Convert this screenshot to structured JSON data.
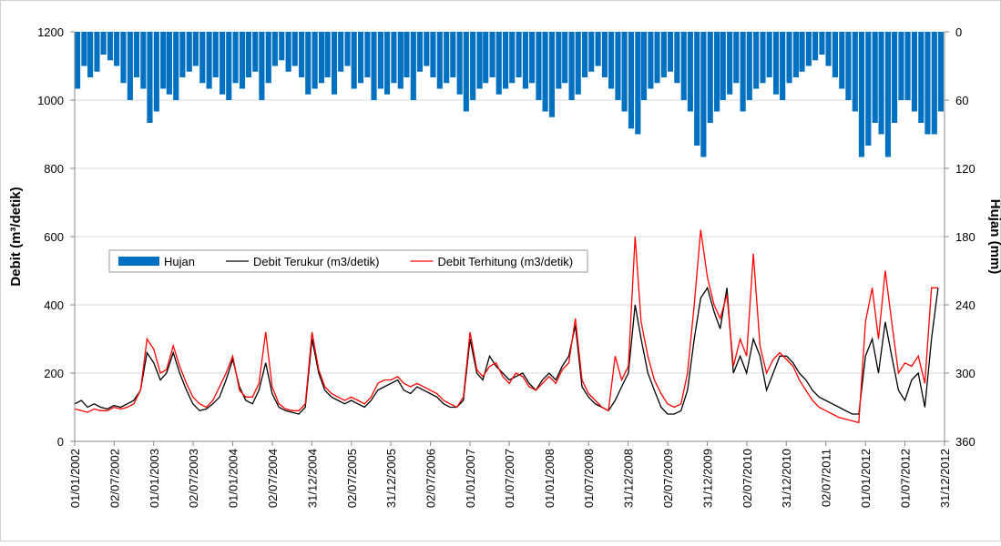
{
  "chart_data": {
    "type": "line",
    "ylabel": "Debit (m³/detik)",
    "y2label": "Hujan (mm)",
    "ylim": [
      0,
      1200
    ],
    "yticks": [
      0,
      200,
      400,
      600,
      800,
      1000,
      1200
    ],
    "y2lim": [
      360,
      0
    ],
    "y2ticks": [
      0,
      60,
      120,
      180,
      240,
      300,
      360
    ],
    "grid": true,
    "legend": "center-left",
    "xlim": [
      "2002-01-01",
      "2012-12-31"
    ],
    "xticks": [
      {
        "value": "2002-01-01",
        "label": "01/01/2002"
      },
      {
        "value": "2002-07-02",
        "label": "02/07/2002"
      },
      {
        "value": "2003-01-01",
        "label": "01/01/2003"
      },
      {
        "value": "2003-07-02",
        "label": "02/07/2003"
      },
      {
        "value": "2004-01-01",
        "label": "01/01/2004"
      },
      {
        "value": "2004-07-02",
        "label": "02/07/2004"
      },
      {
        "value": "2004-12-31",
        "label": "31/12/2004"
      },
      {
        "value": "2005-07-02",
        "label": "02/07/2005"
      },
      {
        "value": "2005-12-31",
        "label": "31/12/2005"
      },
      {
        "value": "2006-07-02",
        "label": "02/07/2006"
      },
      {
        "value": "2007-01-01",
        "label": "01/01/2007"
      },
      {
        "value": "2007-07-01",
        "label": "01/07/2007"
      },
      {
        "value": "2008-01-01",
        "label": "01/01/2008"
      },
      {
        "value": "2008-07-01",
        "label": "01/07/2008"
      },
      {
        "value": "2008-12-31",
        "label": "31/12/2008"
      },
      {
        "value": "2009-07-02",
        "label": "02/07/2009"
      },
      {
        "value": "2009-12-31",
        "label": "31/12/2009"
      },
      {
        "value": "2010-07-02",
        "label": "02/07/2010"
      },
      {
        "value": "2010-12-31",
        "label": "31/12/2010"
      },
      {
        "value": "2011-07-02",
        "label": "02/07/2011"
      },
      {
        "value": "2012-01-01",
        "label": "01/01/2012"
      },
      {
        "value": "2012-07-01",
        "label": "01/07/2012"
      },
      {
        "value": "2012-12-31",
        "label": "31/12/2012"
      }
    ],
    "x": [
      "2002-01-01",
      "2002-02-01",
      "2002-03-01",
      "2002-04-01",
      "2002-05-01",
      "2002-06-01",
      "2002-07-01",
      "2002-08-01",
      "2002-09-01",
      "2002-10-01",
      "2002-11-01",
      "2002-12-01",
      "2003-01-01",
      "2003-02-01",
      "2003-03-01",
      "2003-04-01",
      "2003-05-01",
      "2003-06-01",
      "2003-07-01",
      "2003-08-01",
      "2003-09-01",
      "2003-10-01",
      "2003-11-01",
      "2003-12-01",
      "2004-01-01",
      "2004-02-01",
      "2004-03-01",
      "2004-04-01",
      "2004-05-01",
      "2004-06-01",
      "2004-07-01",
      "2004-08-01",
      "2004-09-01",
      "2004-10-01",
      "2004-11-01",
      "2004-12-01",
      "2005-01-01",
      "2005-02-01",
      "2005-03-01",
      "2005-04-01",
      "2005-05-01",
      "2005-06-01",
      "2005-07-01",
      "2005-08-01",
      "2005-09-01",
      "2005-10-01",
      "2005-11-01",
      "2005-12-01",
      "2006-01-01",
      "2006-02-01",
      "2006-03-01",
      "2006-04-01",
      "2006-05-01",
      "2006-06-01",
      "2006-07-01",
      "2006-08-01",
      "2006-09-01",
      "2006-10-01",
      "2006-11-01",
      "2006-12-01",
      "2007-01-01",
      "2007-02-01",
      "2007-03-01",
      "2007-04-01",
      "2007-05-01",
      "2007-06-01",
      "2007-07-01",
      "2007-08-01",
      "2007-09-01",
      "2007-10-01",
      "2007-11-01",
      "2007-12-01",
      "2008-01-01",
      "2008-02-01",
      "2008-03-01",
      "2008-04-01",
      "2008-05-01",
      "2008-06-01",
      "2008-07-01",
      "2008-08-01",
      "2008-09-01",
      "2008-10-01",
      "2008-11-01",
      "2008-12-01",
      "2009-01-01",
      "2009-02-01",
      "2009-03-01",
      "2009-04-01",
      "2009-05-01",
      "2009-06-01",
      "2009-07-01",
      "2009-08-01",
      "2009-09-01",
      "2009-10-01",
      "2009-11-01",
      "2009-12-01",
      "2010-01-01",
      "2010-02-01",
      "2010-03-01",
      "2010-04-01",
      "2010-05-01",
      "2010-06-01",
      "2010-07-01",
      "2010-08-01",
      "2010-09-01",
      "2010-10-01",
      "2010-11-01",
      "2010-12-01",
      "2011-01-01",
      "2011-02-01",
      "2011-03-01",
      "2011-04-01",
      "2011-05-01",
      "2011-06-01",
      "2011-07-01",
      "2011-08-01",
      "2011-09-01",
      "2011-10-01",
      "2011-11-01",
      "2011-12-01",
      "2012-01-01",
      "2012-02-01",
      "2012-03-01",
      "2012-04-01",
      "2012-05-01",
      "2012-06-01",
      "2012-07-01",
      "2012-08-01",
      "2012-09-01",
      "2012-10-01",
      "2012-11-01",
      "2012-12-01"
    ],
    "series": [
      {
        "name": "Hujan",
        "type": "bar",
        "axis": "y2",
        "color": "#0070c0",
        "values": [
          50,
          30,
          40,
          35,
          20,
          25,
          30,
          45,
          60,
          40,
          50,
          80,
          70,
          50,
          55,
          60,
          40,
          35,
          30,
          45,
          50,
          40,
          55,
          60,
          45,
          50,
          40,
          35,
          60,
          45,
          30,
          25,
          35,
          30,
          40,
          55,
          50,
          45,
          40,
          55,
          35,
          30,
          50,
          45,
          40,
          60,
          50,
          55,
          45,
          50,
          40,
          60,
          35,
          30,
          40,
          50,
          45,
          40,
          55,
          70,
          60,
          50,
          45,
          40,
          55,
          50,
          45,
          40,
          50,
          45,
          60,
          70,
          75,
          50,
          45,
          60,
          55,
          40,
          35,
          30,
          40,
          50,
          60,
          70,
          85,
          90,
          60,
          50,
          45,
          40,
          35,
          45,
          60,
          70,
          100,
          110,
          80,
          70,
          60,
          55,
          45,
          70,
          60,
          50,
          45,
          40,
          55,
          60,
          45,
          40,
          35,
          30,
          25,
          20,
          30,
          40,
          50,
          60,
          70,
          110,
          100,
          80,
          90,
          110,
          80,
          60,
          60,
          70,
          80,
          90,
          90,
          70
        ]
      },
      {
        "name": "Debit Terukur (m3/detik)",
        "color": "#000000",
        "values": [
          110,
          120,
          100,
          110,
          100,
          95,
          105,
          100,
          110,
          120,
          150,
          260,
          230,
          180,
          200,
          260,
          200,
          150,
          110,
          90,
          95,
          110,
          130,
          180,
          240,
          160,
          120,
          110,
          150,
          230,
          140,
          100,
          90,
          85,
          80,
          100,
          300,
          200,
          150,
          130,
          120,
          110,
          120,
          110,
          100,
          120,
          150,
          160,
          170,
          180,
          150,
          140,
          160,
          150,
          140,
          130,
          110,
          100,
          100,
          120,
          300,
          200,
          180,
          250,
          220,
          200,
          180,
          190,
          200,
          170,
          150,
          180,
          200,
          180,
          220,
          250,
          340,
          160,
          130,
          110,
          100,
          90,
          120,
          160,
          200,
          400,
          300,
          200,
          150,
          100,
          80,
          80,
          90,
          150,
          300,
          420,
          450,
          380,
          330,
          450,
          200,
          250,
          200,
          300,
          250,
          150,
          200,
          250,
          250,
          230,
          200,
          180,
          150,
          130,
          120,
          110,
          100,
          90,
          80,
          80,
          250,
          300,
          200,
          350,
          250,
          150,
          120,
          180,
          200,
          100,
          300,
          450
        ]
      },
      {
        "name": "Debit Terhitung (m3/detik)",
        "color": "#ff0000",
        "values": [
          95,
          90,
          85,
          95,
          90,
          90,
          100,
          95,
          100,
          110,
          150,
          300,
          270,
          200,
          210,
          280,
          220,
          170,
          130,
          110,
          100,
          120,
          160,
          200,
          250,
          150,
          130,
          130,
          170,
          320,
          160,
          110,
          95,
          90,
          90,
          110,
          320,
          210,
          160,
          140,
          130,
          120,
          130,
          120,
          110,
          130,
          170,
          180,
          180,
          190,
          170,
          160,
          170,
          160,
          150,
          140,
          120,
          110,
          100,
          130,
          320,
          210,
          190,
          220,
          230,
          190,
          170,
          200,
          190,
          160,
          150,
          170,
          190,
          170,
          210,
          230,
          360,
          180,
          140,
          120,
          100,
          90,
          250,
          180,
          220,
          600,
          350,
          250,
          180,
          140,
          110,
          100,
          110,
          200,
          400,
          620,
          480,
          400,
          360,
          430,
          220,
          300,
          250,
          550,
          280,
          200,
          240,
          260,
          240,
          220,
          180,
          150,
          120,
          100,
          90,
          80,
          70,
          65,
          60,
          55,
          350,
          450,
          300,
          500,
          350,
          200,
          230,
          220,
          250,
          170,
          450,
          450
        ]
      }
    ]
  }
}
